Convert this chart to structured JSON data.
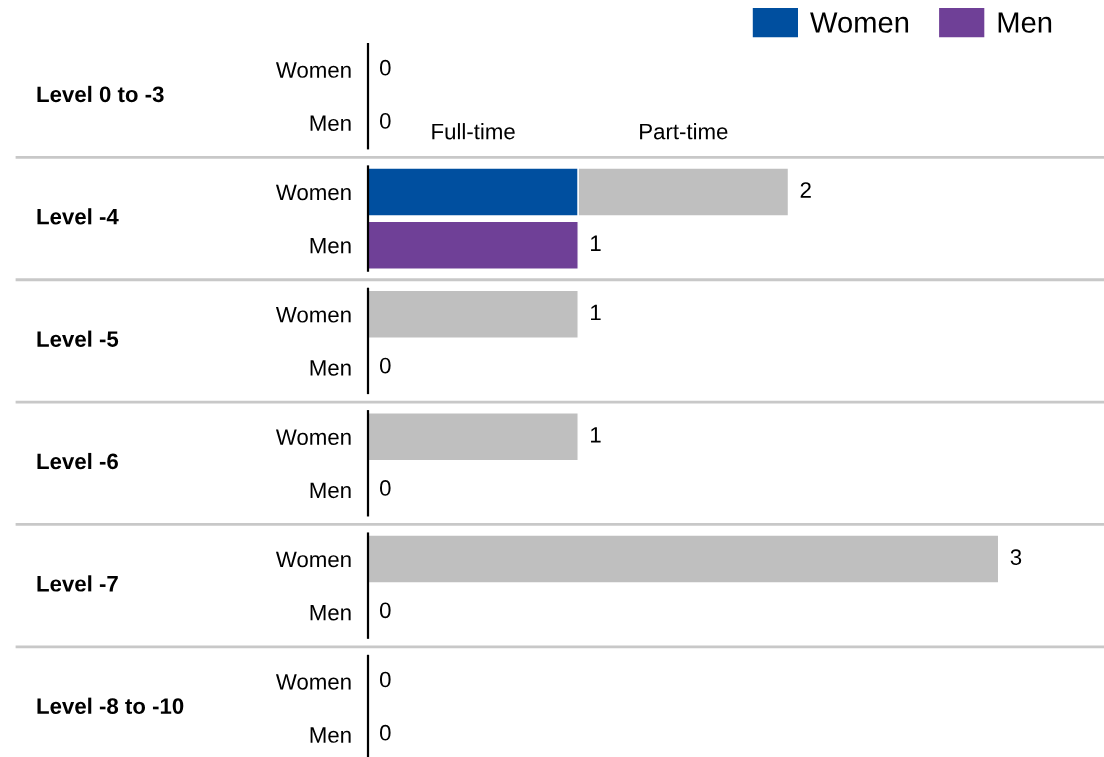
{
  "chart_data": {
    "type": "bar",
    "orientation": "horizontal",
    "stacked": true,
    "categories": [
      "Women",
      "Men",
      "Women",
      "Men",
      "Women",
      "Men",
      "Women",
      "Men",
      "Women",
      "Men",
      "Women",
      "Men"
    ],
    "series": [
      {
        "name": "Women",
        "color": "#004f9f",
        "values": [
          null,
          null,
          1,
          null,
          null,
          null,
          null,
          null,
          null,
          null,
          null,
          null
        ]
      },
      {
        "name": "Men",
        "color": "#6f4097",
        "values": [
          null,
          null,
          null,
          1,
          null,
          null,
          null,
          null,
          null,
          null,
          null,
          null
        ],
        "value_labels": [
          null,
          null,
          null,
          "1",
          null,
          null,
          null,
          null,
          null,
          null,
          null,
          null
        ]
      },
      {
        "color": "#bfbfbf",
        "values": [
          null,
          null,
          1,
          null,
          1,
          null,
          1,
          null,
          3,
          null,
          null,
          null
        ],
        "value_labels": [
          null,
          null,
          null,
          null,
          "1",
          null,
          "1",
          null,
          "3",
          null,
          null,
          null
        ]
      }
    ],
    "totals": [
      "0",
      "0",
      "2",
      null,
      null,
      "0",
      null,
      "0",
      null,
      "0",
      "0",
      "0"
    ],
    "annotations": [
      "Level 0 to -3",
      "Level -4",
      "Level -5",
      "Level -6",
      "Level -7",
      "Level -8 to -10",
      "Full-time",
      "Part-time"
    ],
    "tick_labels": "y",
    "legend": "top right"
  }
}
